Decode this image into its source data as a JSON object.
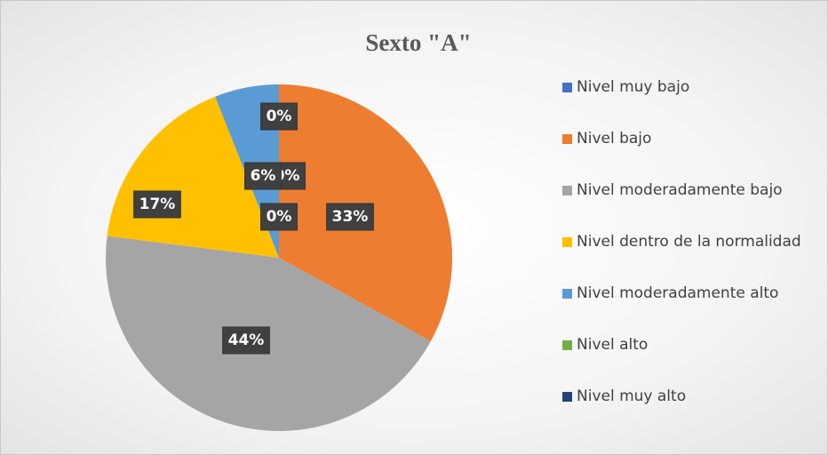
{
  "chart_data": {
    "type": "pie",
    "title": "Sexto \"A\"",
    "categories": [
      "Nivel muy bajo",
      "Nivel bajo",
      "Nivel moderadamente bajo",
      "Nivel dentro de la normalidad",
      "Nivel moderadamente alto",
      "Nivel alto",
      "Nivel muy alto"
    ],
    "values": [
      0,
      33,
      44,
      17,
      6,
      0,
      0
    ],
    "value_labels": [
      "0%",
      "33%",
      "44%",
      "17%",
      "6%",
      "0%",
      "0%"
    ],
    "colors": [
      "#4472c4",
      "#ed7d31",
      "#a5a5a5",
      "#ffc000",
      "#5b9bd5",
      "#70ad47",
      "#264478"
    ],
    "legend": "right"
  }
}
